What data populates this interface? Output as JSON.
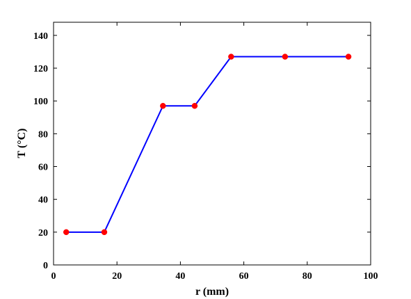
{
  "chart_data": {
    "type": "line",
    "title": "",
    "xlabel": "r (mm)",
    "ylabel": "T (°C)",
    "xlim": [
      0,
      100
    ],
    "ylim": [
      0,
      148
    ],
    "xticks": [
      0,
      20,
      40,
      60,
      80,
      100
    ],
    "yticks": [
      0,
      20,
      40,
      60,
      80,
      100,
      120,
      140
    ],
    "grid": false,
    "legend": "none",
    "series": [
      {
        "x": [
          4,
          16,
          34.5,
          44.5,
          56,
          73,
          93
        ],
        "y": [
          20,
          20,
          97,
          97,
          127,
          127,
          127
        ],
        "line_color": "#0000ff",
        "marker_color": "#ff0000"
      }
    ]
  }
}
